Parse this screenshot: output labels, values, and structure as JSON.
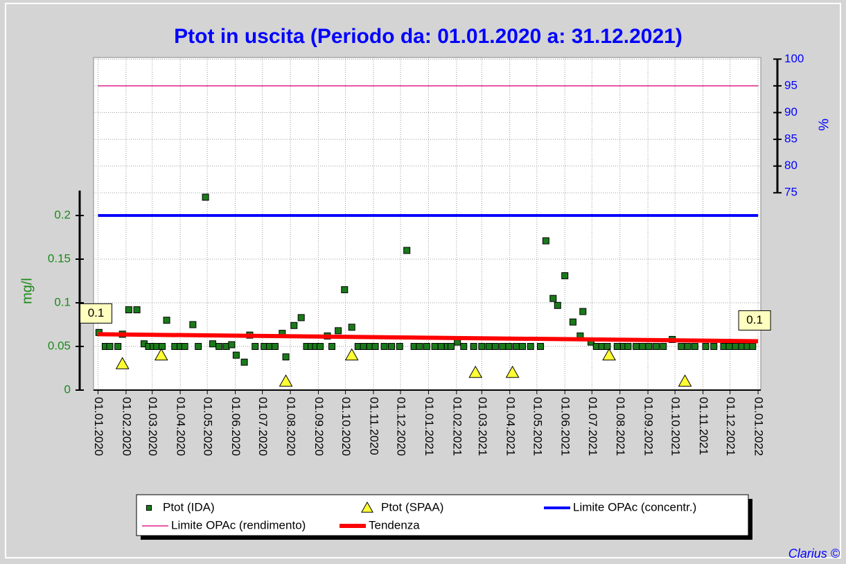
{
  "chart_data": {
    "type": "scatter",
    "title": "Ptot in uscita (Periodo da: 01.01.2020 a: 31.12.2021)",
    "y_label": "mg/l",
    "y2_label": "%",
    "footer": "Clarius ©",
    "xlim": [
      "27.12.2019",
      "04.01.2022"
    ],
    "xticks": [
      "01.01.2020",
      "01.02.2020",
      "01.03.2020",
      "01.04.2020",
      "01.05.2020",
      "01.06.2020",
      "01.07.2020",
      "01.08.2020",
      "01.09.2020",
      "01.10.2020",
      "01.11.2020",
      "01.12.2020",
      "01.01.2021",
      "01.02.2021",
      "01.03.2021",
      "01.04.2021",
      "01.05.2021",
      "01.06.2021",
      "01.07.2021",
      "01.08.2021",
      "01.09.2021",
      "01.10.2021",
      "01.11.2021",
      "01.12.2021",
      "01.01.2022"
    ],
    "ylim": [
      0,
      0.381
    ],
    "yticks": [
      0,
      0.05,
      0.1,
      0.15,
      0.2
    ],
    "y2lim": [
      38.1,
      100.3
    ],
    "y2ticks": [
      75,
      80,
      85,
      90,
      95,
      100
    ],
    "grid": true,
    "legend": "bottom",
    "series": [
      {
        "name": "Ptot (IDA)",
        "color": "#1a7a1a",
        "marker": "square",
        "x": [
          "02.01.2020",
          "09.01.2020",
          "14.01.2020",
          "23.01.2020",
          "28.01.2020",
          "04.02.2020",
          "13.02.2020",
          "21.02.2020",
          "26.02.2020",
          "02.03.2020",
          "06.03.2020",
          "12.03.2020",
          "17.03.2020",
          "26.03.2020",
          "01.04.2020",
          "06.04.2020",
          "15.04.2020",
          "21.04.2020",
          "29.04.2020",
          "07.05.2020",
          "14.05.2020",
          "22.05.2020",
          "28.05.2020",
          "02.06.2020",
          "11.06.2020",
          "17.06.2020",
          "23.06.2020",
          "03.07.2020",
          "09.07.2020",
          "15.07.2020",
          "23.07.2020",
          "27.07.2020",
          "05.08.2020",
          "13.08.2020",
          "19.08.2020",
          "24.08.2020",
          "29.08.2020",
          "03.09.2020",
          "11.09.2020",
          "16.09.2020",
          "23.09.2020",
          "30.09.2020",
          "08.10.2020",
          "15.10.2020",
          "21.10.2020",
          "28.10.2020",
          "03.11.2020",
          "13.11.2020",
          "21.11.2020",
          "30.11.2020",
          "08.12.2020",
          "16.12.2020",
          "22.12.2020",
          "30.12.2020",
          "08.01.2021",
          "15.01.2021",
          "22.01.2021",
          "26.01.2021",
          "02.02.2021",
          "09.02.2021",
          "20.02.2021",
          "01.03.2021",
          "09.03.2021",
          "16.03.2021",
          "24.03.2021",
          "31.03.2021",
          "08.04.2021",
          "15.04.2021",
          "24.04.2021",
          "05.05.2021",
          "11.05.2021",
          "19.05.2021",
          "24.05.2021",
          "01.06.2021",
          "10.06.2021",
          "18.06.2021",
          "21.06.2021",
          "30.06.2021",
          "06.07.2021",
          "12.07.2021",
          "18.07.2021",
          "29.07.2021",
          "05.08.2021",
          "10.08.2021",
          "19.08.2021",
          "26.08.2021",
          "02.09.2021",
          "10.09.2021",
          "18.09.2021",
          "28.09.2021",
          "08.10.2021",
          "15.10.2021",
          "23.10.2021",
          "04.11.2021",
          "13.11.2021",
          "24.11.2021",
          "30.11.2021",
          "07.12.2021",
          "14.12.2021",
          "20.12.2021",
          "26.12.2021"
        ],
        "values": [
          0.066,
          0.05,
          0.05,
          0.05,
          0.064,
          0.092,
          0.092,
          0.053,
          0.05,
          0.05,
          0.05,
          0.05,
          0.08,
          0.05,
          0.05,
          0.05,
          0.075,
          0.05,
          0.221,
          0.053,
          0.05,
          0.05,
          0.052,
          0.04,
          0.032,
          0.063,
          0.05,
          0.05,
          0.05,
          0.05,
          0.065,
          0.038,
          0.074,
          0.083,
          0.05,
          0.05,
          0.05,
          0.05,
          0.062,
          0.05,
          0.068,
          0.115,
          0.072,
          0.05,
          0.05,
          0.05,
          0.05,
          0.05,
          0.05,
          0.05,
          0.16,
          0.05,
          0.05,
          0.05,
          0.05,
          0.05,
          0.05,
          0.05,
          0.055,
          0.05,
          0.05,
          0.05,
          0.05,
          0.05,
          0.05,
          0.05,
          0.05,
          0.05,
          0.05,
          0.05,
          0.171,
          0.105,
          0.097,
          0.131,
          0.078,
          0.062,
          0.09,
          0.055,
          0.05,
          0.05,
          0.05,
          0.05,
          0.05,
          0.05,
          0.05,
          0.05,
          0.05,
          0.05,
          0.05,
          0.058,
          0.05,
          0.05,
          0.05,
          0.05,
          0.05,
          0.05,
          0.05,
          0.05,
          0.05,
          0.05,
          0.05
        ]
      },
      {
        "name": "Ptot (SPAA)",
        "color": "#ffff33",
        "marker": "triangle",
        "x": [
          "28.01.2020",
          "11.03.2020",
          "27.07.2020",
          "08.10.2020",
          "22.02.2021",
          "04.04.2021",
          "20.07.2021",
          "12.10.2021"
        ],
        "values": [
          0.03,
          0.04,
          0.01,
          0.04,
          0.02,
          0.02,
          0.04,
          0.01
        ]
      },
      {
        "name": "Limite OPAc (concentr.)",
        "color": "#0000ff",
        "marker": "line",
        "width": 4,
        "x": [
          "01.01.2020",
          "01.01.2022"
        ],
        "values": [
          0.2,
          0.2
        ]
      },
      {
        "name": "Limite OPAc (rendimento)",
        "color": "#e0208c",
        "marker": "line",
        "width": 1.5,
        "axis": "y2",
        "x": [
          "01.01.2020",
          "01.01.2022"
        ],
        "values": [
          95,
          95
        ]
      },
      {
        "name": "Tendenza",
        "color": "#ff0000",
        "marker": "line",
        "width": 6,
        "x": [
          "01.01.2020",
          "01.01.2022"
        ],
        "values": [
          0.064,
          0.056
        ],
        "value_labels": [
          "0.1",
          "0.1"
        ]
      }
    ]
  }
}
